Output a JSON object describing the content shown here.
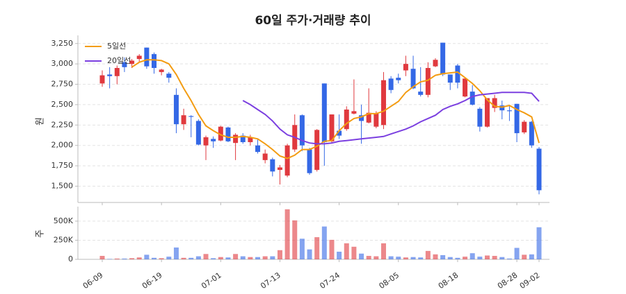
{
  "chart_data": [
    {
      "type": "candlestick",
      "title": "60일 주가·거래량 추이",
      "ylabel": "원",
      "categories": [
        "06-09",
        null,
        null,
        null,
        null,
        null,
        null,
        null,
        "06-19",
        null,
        null,
        null,
        null,
        null,
        null,
        null,
        "07-01",
        null,
        null,
        null,
        null,
        null,
        null,
        null,
        "07-13",
        null,
        null,
        null,
        null,
        null,
        null,
        null,
        "07-24",
        null,
        null,
        null,
        null,
        null,
        null,
        null,
        "08-05",
        null,
        null,
        null,
        null,
        null,
        null,
        null,
        "08-18",
        null,
        null,
        null,
        null,
        null,
        null,
        null,
        "08-28",
        null,
        null,
        "09-02"
      ],
      "open": [
        2760,
        2870,
        2850,
        3020,
        3000,
        3060,
        3200,
        3120,
        2900,
        2880,
        2620,
        2260,
        2360,
        2300,
        2000,
        2080,
        2060,
        2220,
        2030,
        2120,
        2040,
        2000,
        1820,
        1830,
        1700,
        1630,
        1950,
        2370,
        1950,
        1700,
        2760,
        2050,
        2180,
        2200,
        2390,
        2370,
        2280,
        2230,
        2250,
        2820,
        2830,
        2920,
        2940,
        2660,
        2620,
        2970,
        3260,
        2870,
        2980,
        2600,
        2660,
        2450,
        2230,
        2460,
        2490,
        2430,
        2510,
        2160,
        2290,
        1960
      ],
      "high": [
        2920,
        2960,
        2980,
        3080,
        3060,
        3120,
        3200,
        3140,
        2940,
        2900,
        2700,
        2450,
        2370,
        2320,
        2120,
        2110,
        2240,
        2230,
        2150,
        2150,
        2130,
        2080,
        1950,
        1850,
        1760,
        2020,
        2380,
        2380,
        1970,
        2200,
        2760,
        2380,
        2380,
        2480,
        2810,
        2500,
        2700,
        2420,
        2900,
        2850,
        2880,
        3100,
        3100,
        2960,
        3020,
        3070,
        3260,
        2870,
        3000,
        2830,
        2740,
        2470,
        2580,
        2620,
        2550,
        2500,
        2510,
        2310,
        2300,
        1980
      ],
      "low": [
        2720,
        2700,
        2750,
        2900,
        2950,
        3020,
        2940,
        2880,
        2860,
        2770,
        2150,
        2190,
        2100,
        2000,
        1820,
        1970,
        2050,
        2040,
        1820,
        2020,
        2000,
        1900,
        1780,
        1620,
        1520,
        1610,
        1920,
        1930,
        1640,
        1680,
        1750,
        2030,
        2080,
        2180,
        2380,
        2020,
        2270,
        2210,
        2200,
        2640,
        2760,
        2850,
        2690,
        2600,
        2590,
        2960,
        2850,
        2680,
        2700,
        2590,
        2490,
        2170,
        2220,
        2410,
        2320,
        2300,
        2040,
        2140,
        1970,
        1400
      ],
      "close": [
        2860,
        2850,
        2950,
        2960,
        3040,
        3100,
        2970,
        2950,
        2930,
        2830,
        2260,
        2370,
        2350,
        2010,
        2100,
        2050,
        2230,
        2050,
        2130,
        2040,
        2100,
        1920,
        1900,
        1680,
        1730,
        2000,
        2250,
        2000,
        1660,
        2190,
        2040,
        2380,
        2120,
        2440,
        2420,
        2300,
        2400,
        2390,
        2800,
        2680,
        2800,
        3000,
        2700,
        2620,
        2950,
        3050,
        2870,
        2770,
        2770,
        2820,
        2500,
        2230,
        2580,
        2580,
        2430,
        2420,
        2150,
        2290,
        2000,
        1450
      ],
      "up_color": "#e0393e",
      "down_color": "#3468e6",
      "ylim": [
        1300,
        3350
      ],
      "yticks": [
        {
          "value": 1500,
          "label": "1,500"
        },
        {
          "value": 1750,
          "label": "1,750"
        },
        {
          "value": 2000,
          "label": "2,000"
        },
        {
          "value": 2250,
          "label": "2,250"
        },
        {
          "value": 2500,
          "label": "2,500"
        },
        {
          "value": 2750,
          "label": "2,750"
        },
        {
          "value": 3000,
          "label": "3,000"
        },
        {
          "value": 3250,
          "label": "3,250"
        }
      ],
      "grid": true,
      "legend": "upper left",
      "series": [
        {
          "name": "5일선",
          "color": "#f39c12",
          "values": [
            null,
            null,
            null,
            null,
            2960,
            3020,
            3050,
            3050,
            3040,
            3000,
            2870,
            2700,
            2550,
            2380,
            2240,
            2180,
            2130,
            2100,
            2100,
            2110,
            2100,
            2080,
            2020,
            1950,
            1870,
            1840,
            1880,
            1950,
            1950,
            1990,
            2050,
            2060,
            2180,
            2270,
            2330,
            2350,
            2390,
            2390,
            2420,
            2480,
            2540,
            2650,
            2720,
            2780,
            2800,
            2860,
            2880,
            2890,
            2900,
            2830,
            2760,
            2670,
            2560,
            2480,
            2470,
            2490,
            2440,
            2400,
            2350,
            2030
          ]
        },
        {
          "name": "20일선",
          "color": "#7b3fe0",
          "values": [
            null,
            null,
            null,
            null,
            null,
            null,
            null,
            null,
            null,
            null,
            null,
            null,
            null,
            null,
            null,
            null,
            null,
            null,
            null,
            2550,
            2500,
            2440,
            2380,
            2300,
            2200,
            2130,
            2100,
            2060,
            2030,
            2020,
            2020,
            2030,
            2050,
            2060,
            2070,
            2080,
            2090,
            2100,
            2110,
            2140,
            2170,
            2200,
            2240,
            2290,
            2330,
            2370,
            2440,
            2480,
            2510,
            2550,
            2600,
            2620,
            2630,
            2640,
            2650,
            2650,
            2650,
            2650,
            2640,
            2540
          ]
        }
      ]
    },
    {
      "type": "bar",
      "ylabel": "주",
      "values": [
        45000,
        5000,
        10000,
        10000,
        15000,
        25000,
        60000,
        20000,
        15000,
        35000,
        155000,
        20000,
        20000,
        40000,
        70000,
        15000,
        30000,
        25000,
        70000,
        40000,
        30000,
        30000,
        40000,
        40000,
        120000,
        655000,
        510000,
        270000,
        130000,
        290000,
        430000,
        255000,
        100000,
        210000,
        165000,
        75000,
        45000,
        40000,
        210000,
        40000,
        35000,
        25000,
        30000,
        25000,
        110000,
        65000,
        55000,
        30000,
        20000,
        35000,
        80000,
        35000,
        50000,
        45000,
        30000,
        10000,
        150000,
        60000,
        65000,
        420000
      ],
      "ylim": [
        0,
        690000
      ],
      "yticks": [
        0,
        {
          "value": 250000,
          "label": "250K"
        },
        {
          "value": 500000,
          "label": "500K"
        }
      ],
      "grid": true
    }
  ]
}
